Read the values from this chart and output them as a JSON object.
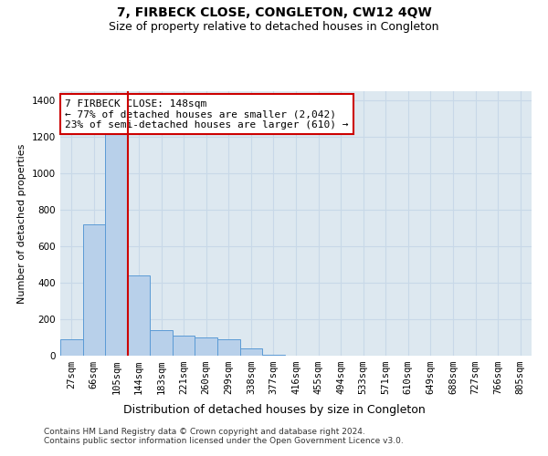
{
  "title1": "7, FIRBECK CLOSE, CONGLETON, CW12 4QW",
  "title2": "Size of property relative to detached houses in Congleton",
  "xlabel": "Distribution of detached houses by size in Congleton",
  "ylabel": "Number of detached properties",
  "footer1": "Contains HM Land Registry data © Crown copyright and database right 2024.",
  "footer2": "Contains public sector information licensed under the Open Government Licence v3.0.",
  "annotation_line1": "7 FIRBECK CLOSE: 148sqm",
  "annotation_line2": "← 77% of detached houses are smaller (2,042)",
  "annotation_line3": "23% of semi-detached houses are larger (610) →",
  "bar_labels": [
    "27sqm",
    "66sqm",
    "105sqm",
    "144sqm",
    "183sqm",
    "221sqm",
    "260sqm",
    "299sqm",
    "338sqm",
    "377sqm",
    "416sqm",
    "455sqm",
    "494sqm",
    "533sqm",
    "571sqm",
    "610sqm",
    "649sqm",
    "688sqm",
    "727sqm",
    "766sqm",
    "805sqm"
  ],
  "bar_values": [
    90,
    720,
    1300,
    440,
    140,
    110,
    100,
    90,
    40,
    3,
    0,
    0,
    0,
    0,
    0,
    0,
    0,
    0,
    0,
    0,
    0
  ],
  "bar_color": "#b8d0ea",
  "bar_edge_color": "#5b9bd5",
  "grid_color": "#c8d8e8",
  "background_color": "#dde8f0",
  "vline_x_index": 3,
  "vline_color": "#cc0000",
  "ylim": [
    0,
    1450
  ],
  "yticks": [
    0,
    200,
    400,
    600,
    800,
    1000,
    1200,
    1400
  ],
  "annotation_box_color": "#ffffff",
  "annotation_box_edge": "#cc0000",
  "title1_fontsize": 10,
  "title2_fontsize": 9,
  "xlabel_fontsize": 9,
  "ylabel_fontsize": 8,
  "tick_fontsize": 7.5,
  "annotation_fontsize": 8,
  "footer_fontsize": 6.5
}
